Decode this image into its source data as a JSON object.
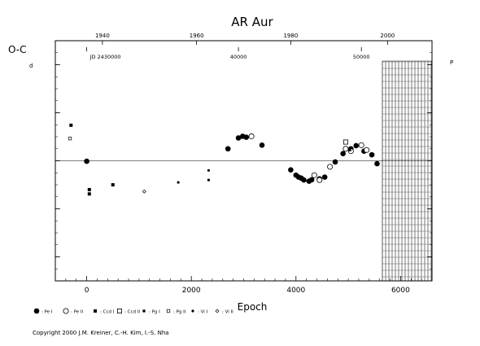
{
  "chart_data": {
    "type": "scatter",
    "title": "AR Aur",
    "ylabel": "O-C",
    "xlabel": "Epoch",
    "xlim": [
      -600,
      6600
    ],
    "ylim": [
      -0.05,
      0.05
    ],
    "x_ticks": [
      0,
      2000,
      4000,
      6000
    ],
    "y_ticks_left": [
      "-0.04",
      "-0.02",
      "0.00",
      "0.02",
      "0.04"
    ],
    "y_ticks_right": [
      "-0.010",
      "-0.005",
      "0.000",
      "0.005",
      "0.010"
    ],
    "left_unit_mark": "d",
    "right_unit_mark": "P",
    "top_year_ticks": [
      {
        "label": "1940",
        "epoch": 300
      },
      {
        "label": "1960",
        "epoch": 2100
      },
      {
        "label": "1980",
        "epoch": 3900
      },
      {
        "label": "2000",
        "epoch": 5750
      }
    ],
    "top_jd_ticks": [
      {
        "label": "JD 2430000",
        "epoch": 0
      },
      {
        "label": "40000",
        "epoch": 2900
      },
      {
        "label": "50000",
        "epoch": 5250
      }
    ],
    "future_zone_start": 5650,
    "series": [
      {
        "name": ": Pe I",
        "marker": "filled-circle",
        "points": [
          [
            0,
            -0.0002
          ],
          [
            2700,
            0.005
          ],
          [
            2900,
            0.0095
          ],
          [
            2980,
            0.0102
          ],
          [
            3050,
            0.0098
          ],
          [
            3350,
            0.0065
          ],
          [
            3900,
            -0.0038
          ],
          [
            4000,
            -0.006
          ],
          [
            4050,
            -0.0068
          ],
          [
            4100,
            -0.0072
          ],
          [
            4150,
            -0.008
          ],
          [
            4250,
            -0.0085
          ],
          [
            4300,
            -0.0079
          ],
          [
            4450,
            -0.0075
          ],
          [
            4550,
            -0.0068
          ],
          [
            4750,
            -0.0005
          ],
          [
            4900,
            0.003
          ],
          [
            5050,
            0.005
          ],
          [
            5150,
            0.0063
          ],
          [
            5300,
            0.004
          ],
          [
            5450,
            0.0025
          ],
          [
            5550,
            -0.0012
          ]
        ]
      },
      {
        "name": ": Pe II",
        "marker": "open-circle",
        "points": [
          [
            3150,
            0.0102
          ],
          [
            4350,
            -0.006
          ],
          [
            4450,
            -0.008
          ],
          [
            4650,
            -0.0025
          ],
          [
            4950,
            0.005
          ],
          [
            5050,
            0.004
          ],
          [
            5250,
            0.0065
          ],
          [
            5350,
            0.0045
          ]
        ]
      },
      {
        "name": ": Ccd I",
        "marker": "filled-square",
        "points": [
          [
            -300,
            0.0148
          ],
          [
            50,
            -0.012
          ],
          [
            50,
            -0.0138
          ],
          [
            500,
            -0.01
          ]
        ]
      },
      {
        "name": ": Ccd II",
        "marker": "open-square",
        "points": [
          [
            4950,
            0.0078
          ]
        ]
      },
      {
        "name": ": Pg I",
        "marker": "small-filled-square",
        "points": [
          [
            5030,
            0.0045
          ]
        ]
      },
      {
        "name": ": Pg II",
        "marker": "small-open-square",
        "points": [
          [
            -320,
            0.0093
          ]
        ]
      },
      {
        "name": ": Vi I",
        "marker": "small-dot",
        "points": [
          [
            1750,
            -0.009
          ],
          [
            2330,
            -0.004
          ],
          [
            2330,
            -0.008
          ]
        ]
      },
      {
        "name": ": Vi II",
        "marker": "small-open-diamond",
        "points": [
          [
            1100,
            -0.0128
          ]
        ]
      }
    ]
  },
  "footer": {
    "copyright": "Copyright 2000 J.M. Kreiner, C.-H. Kim, I.-S. Nha"
  }
}
